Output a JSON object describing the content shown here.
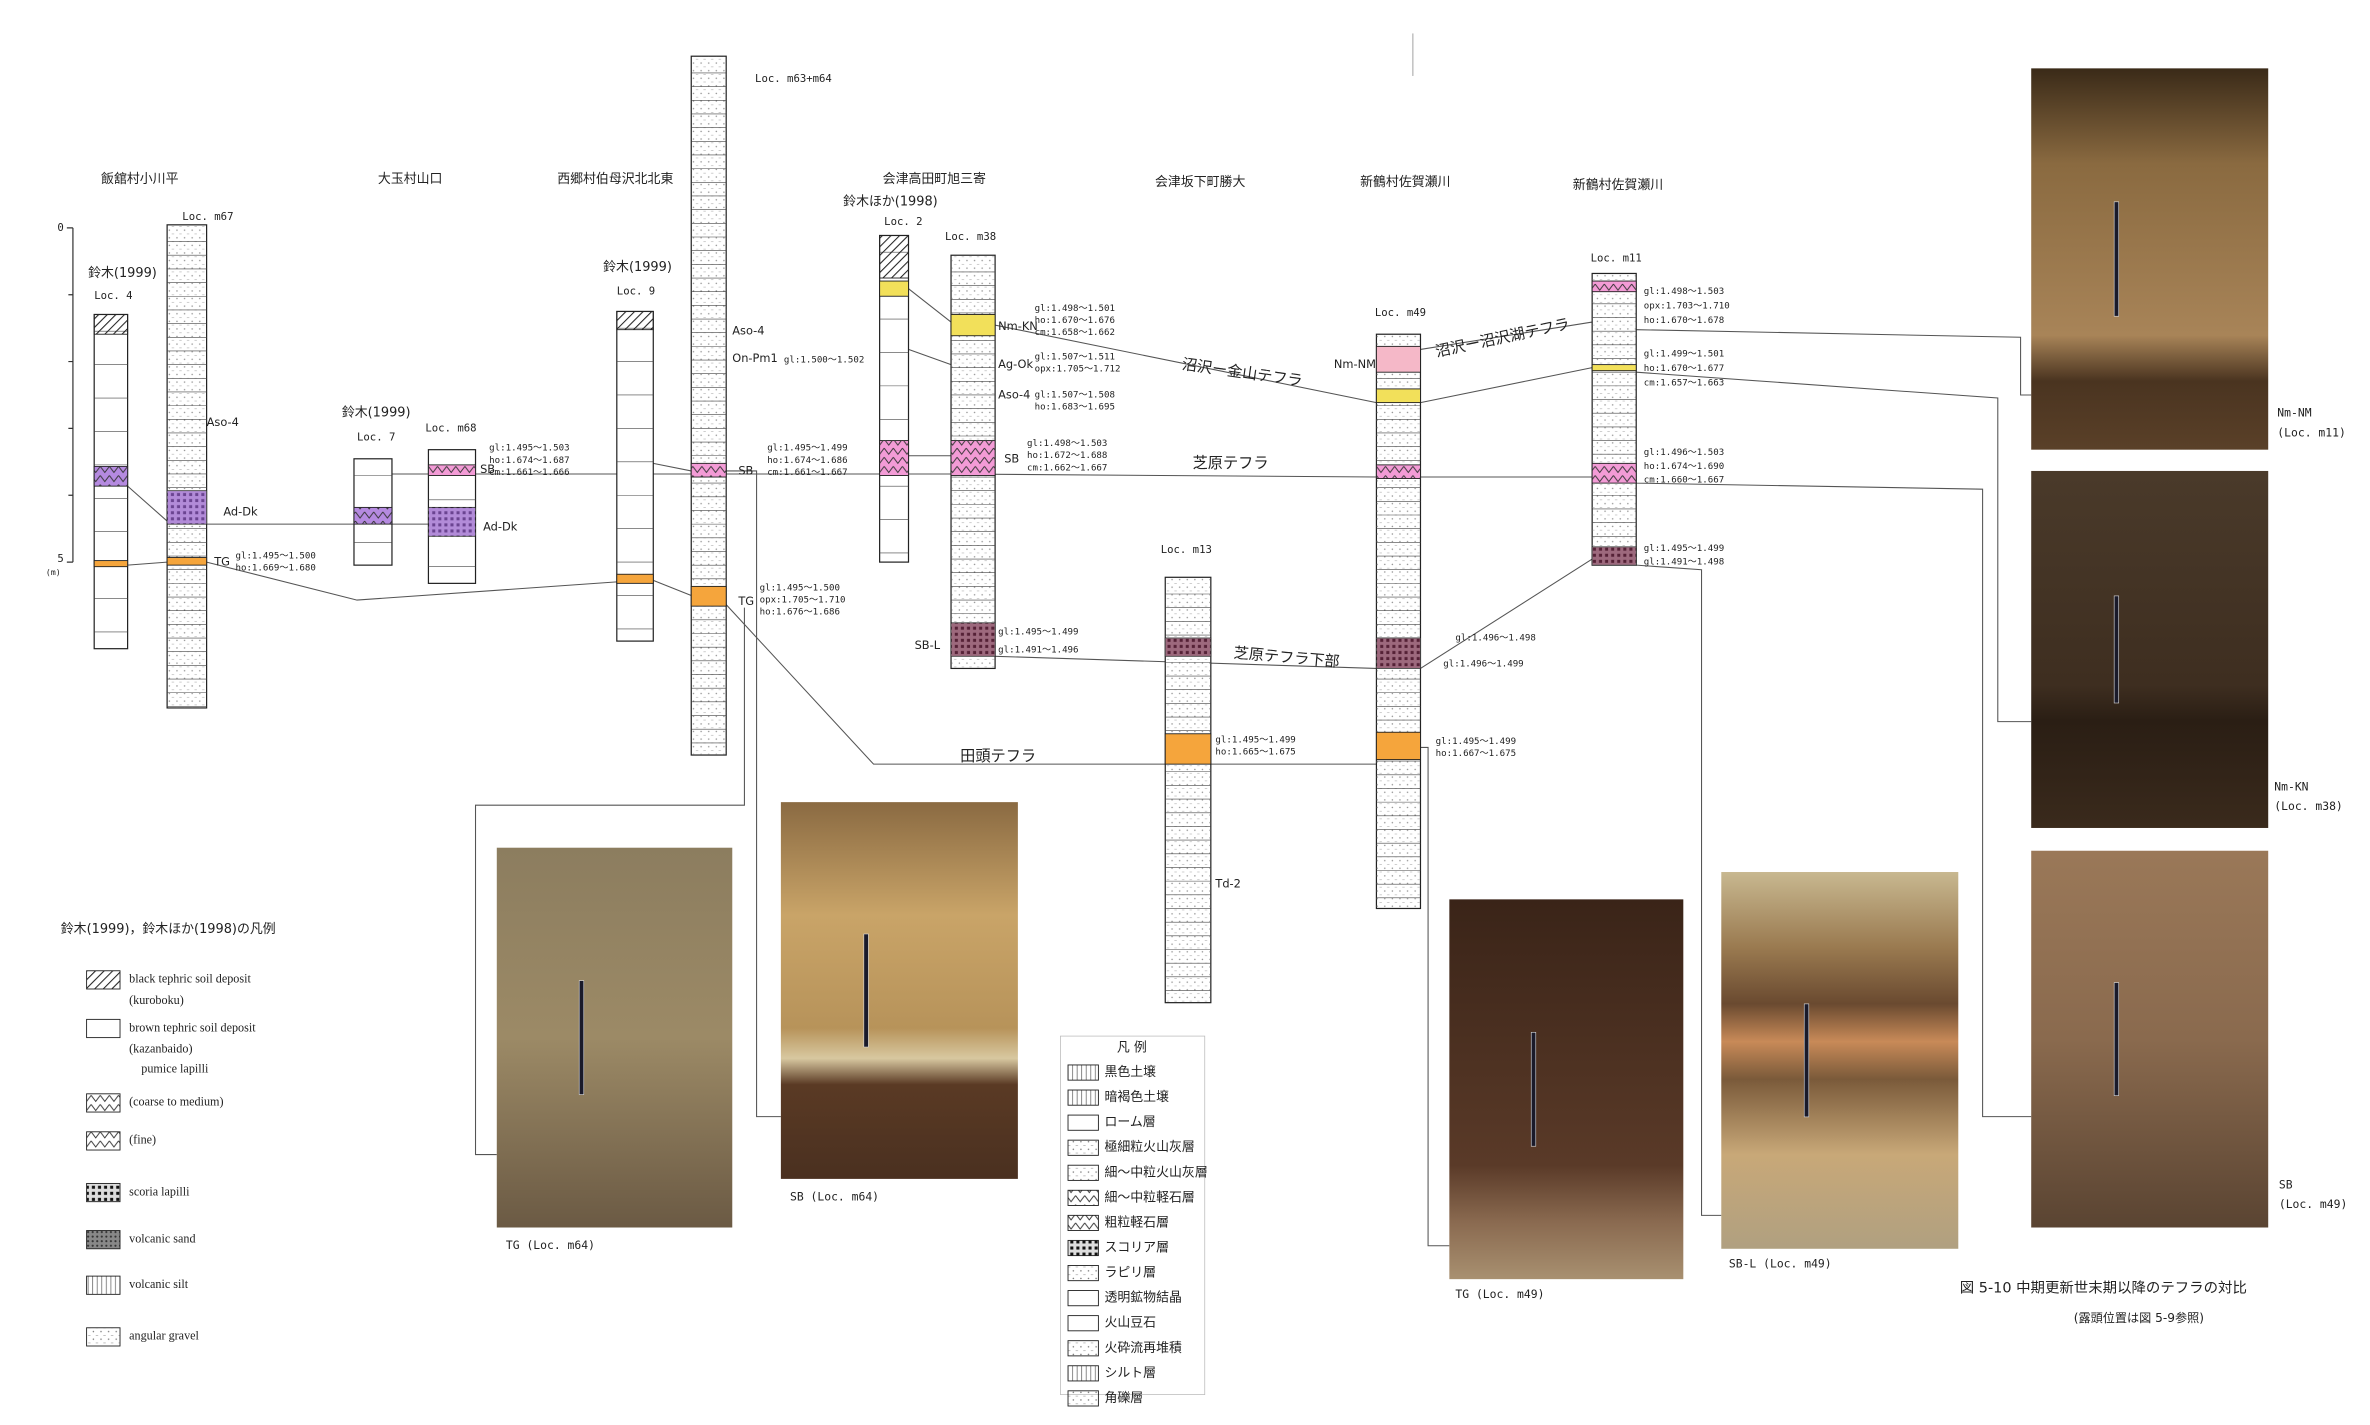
{
  "caption": {
    "title": "図 5-10 中期更新世末期以降のテフラの対比",
    "note": "(露頭位置は図 5-9参照)"
  },
  "sites": [
    "飯舘村小川平",
    "大玉村山口",
    "西郷村伯母沢北北東",
    "会津高田町旭三寄",
    "会津坂下町勝大",
    "新鶴村佐賀瀬川",
    "新鶴村佐賀瀬川"
  ],
  "columns": [
    {
      "loc": "Loc. 4",
      "source": "鈴木(1999)"
    },
    {
      "loc": "Loc. m67"
    },
    {
      "loc": "Loc. 7",
      "source": "鈴木(1999)"
    },
    {
      "loc": "Loc. m68"
    },
    {
      "loc": "Loc. 9",
      "source": "鈴木(1999)"
    },
    {
      "loc": "Loc. m63+m64"
    },
    {
      "loc": "Loc. 2",
      "source": "鈴木ほか(1998)"
    },
    {
      "loc": "Loc. m38"
    },
    {
      "loc": "Loc. m13"
    },
    {
      "loc": "Loc. m49"
    },
    {
      "loc": "Loc. m11"
    }
  ],
  "tephra_labels": [
    "Aso-4",
    "Ad-Dk",
    "TG",
    "SB",
    "Ad-Dk",
    "Aso-4",
    "On-Pm1",
    "SB",
    "TG",
    "Nm-KN",
    "Ag-Ok",
    "Aso-4",
    "SB",
    "SB-L",
    "Nm-NM",
    "Td-2"
  ],
  "refractive_indices": [
    [
      "gl:1.495～1.500",
      "ho:1.669～1.680"
    ],
    [
      "gl:1.495～1.503",
      "ho:1.674～1.687",
      "cm:1.661～1.666"
    ],
    [
      "gl:1.500～1.502"
    ],
    [
      "gl:1.495～1.499",
      "ho:1.674～1.686",
      "cm:1.661～1.667"
    ],
    [
      "gl:1.495～1.500",
      "opx:1.705～1.710",
      "ho:1.676～1.686"
    ],
    [
      "gl:1.498～1.501",
      "ho:1.670～1.676",
      "cm:1.658～1.662"
    ],
    [
      "gl:1.507～1.511",
      "opx:1.705～1.712"
    ],
    [
      "gl:1.507～1.508",
      "ho:1.683～1.695"
    ],
    [
      "gl:1.498～1.503",
      "ho:1.672～1.688",
      "cm:1.662～1.667"
    ],
    [
      "gl:1.495～1.499",
      "gl:1.491～1.496"
    ],
    [
      "gl:1.495～1.499",
      "ho:1.665～1.675"
    ],
    [
      "gl:1.496～1.498"
    ],
    [
      "gl:1.496～1.499"
    ],
    [
      "gl:1.495～1.499",
      "ho:1.667～1.675"
    ],
    [
      "gl:1.498～1.503",
      "opx:1.703～1.710",
      "ho:1.670～1.678"
    ],
    [
      "gl:1.499～1.501",
      "ho:1.670～1.677",
      "cm:1.657～1.663"
    ],
    [
      "gl:1.496～1.503",
      "ho:1.674～1.690",
      "cm:1.660～1.667"
    ],
    [
      "gl:1.495～1.499",
      "gl:1.491～1.498"
    ]
  ],
  "correlations": [
    "沼沢ー金山テフラ",
    "沼沢ー沼沢湖テフラ",
    "芝原テフラ",
    "芝原テフラ下部",
    "田頭テフラ"
  ],
  "photos": [
    [
      "TG (Loc. m64)"
    ],
    [
      "SB (Loc. m64)"
    ],
    [
      "TG (Loc. m49)"
    ],
    [
      "SB-L (Loc. m49)"
    ],
    [
      "Nm-NM",
      "(Loc. m11)"
    ],
    [
      "Nm-KN",
      "(Loc. m38)"
    ],
    [
      "SB",
      "(Loc. m49)"
    ]
  ],
  "legend_en": {
    "title": "鈴木(1999)，鈴木ほか(1998)の凡例",
    "items": [
      [
        "black tephric soil deposit",
        "(kuroboku)"
      ],
      [
        "brown tephric soil deposit",
        "(kazanbaido)"
      ],
      [
        "pumice lapilli"
      ],
      [
        "(coarse to medium)"
      ],
      [
        "(fine)"
      ],
      [
        "scoria lapilli"
      ],
      [
        "volcanic sand"
      ],
      [
        "volcanic silt"
      ],
      [
        "angular gravel"
      ]
    ]
  },
  "legend_jp": {
    "title": "凡 例",
    "items": [
      "黒色土壌",
      "暗褐色土壌",
      "ローム層",
      "極細粒火山灰層",
      "細～中粒火山灰層",
      "細～中粒軽石層",
      "粗粒軽石層",
      "スコリア層",
      "ラピリ層",
      "透明鉱物結晶",
      "火山豆石",
      "火砕流再堆積",
      "シルト層",
      "角礫層"
    ]
  },
  "depth_scale": {
    "top": 0,
    "bottom": 5,
    "unit": "(m)"
  }
}
